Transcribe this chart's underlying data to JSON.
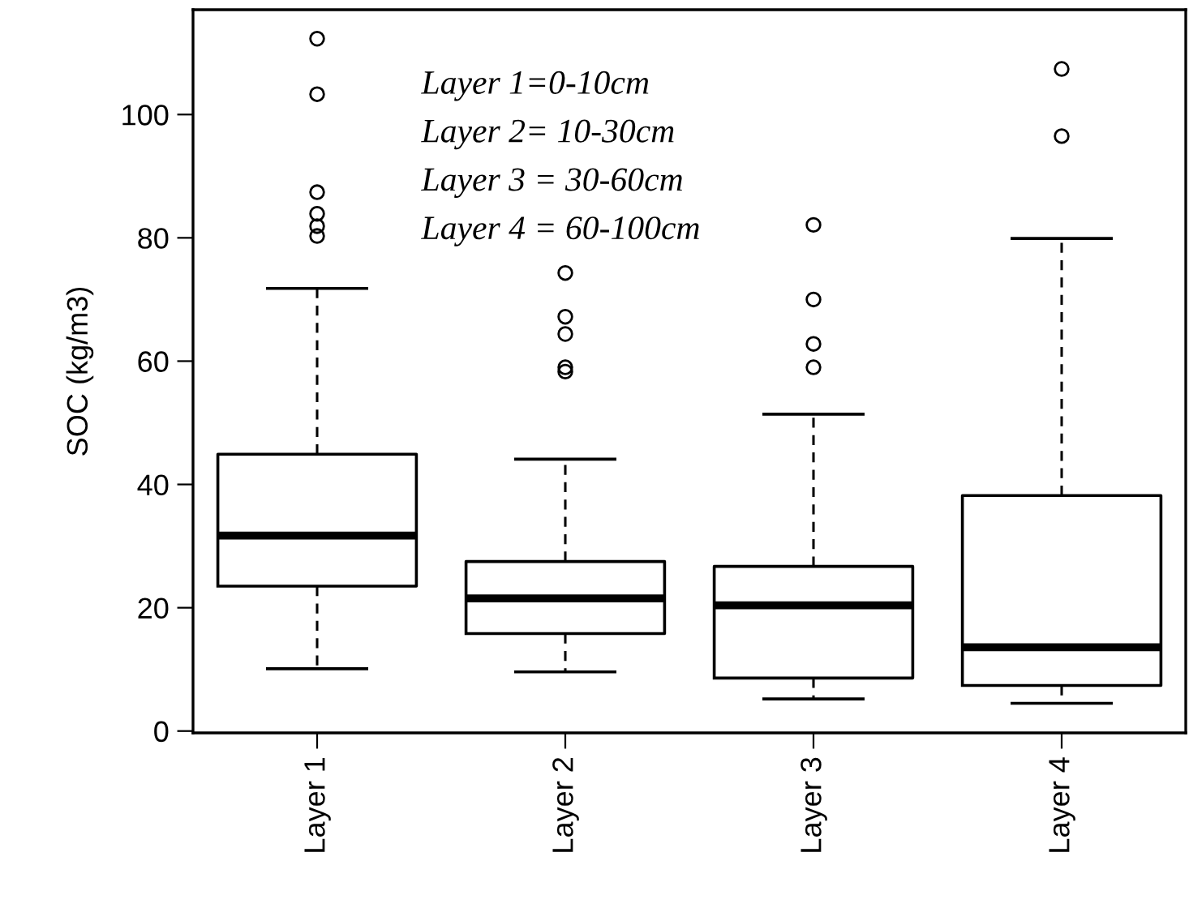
{
  "chart_data": {
    "type": "box",
    "ylabel": "SOC (kg/m3)",
    "categories": [
      "Layer 1",
      "Layer 2",
      "Layer 3",
      "Layer 4"
    ],
    "boxes": [
      {
        "low": 10.1,
        "q1": 23.5,
        "median": 31.7,
        "q3": 44.9,
        "high": 71.8,
        "outliers": [
          112.3,
          103.3,
          87.4,
          83.9,
          81.9,
          80.3
        ]
      },
      {
        "low": 9.6,
        "q1": 15.8,
        "median": 21.5,
        "q3": 27.5,
        "high": 44.1,
        "outliers": [
          74.3,
          67.2,
          64.4,
          59.0,
          58.3
        ]
      },
      {
        "low": 5.2,
        "q1": 8.6,
        "median": 20.4,
        "q3": 26.7,
        "high": 51.4,
        "outliers": [
          82.1,
          70.0,
          62.8,
          59.0
        ]
      },
      {
        "low": 4.5,
        "q1": 7.4,
        "median": 13.6,
        "q3": 38.2,
        "high": 79.9,
        "outliers": [
          107.4,
          96.5
        ]
      }
    ],
    "ylim": [
      -0.3,
      117
    ],
    "yticks": [
      0,
      20,
      40,
      60,
      80,
      100
    ],
    "grid": false,
    "legend": false,
    "annotations": [
      "Layer 1=0-10cm",
      "Layer 2= 10-30cm",
      "Layer 3 = 30-60cm",
      "Layer 4 = 60-100cm"
    ]
  }
}
